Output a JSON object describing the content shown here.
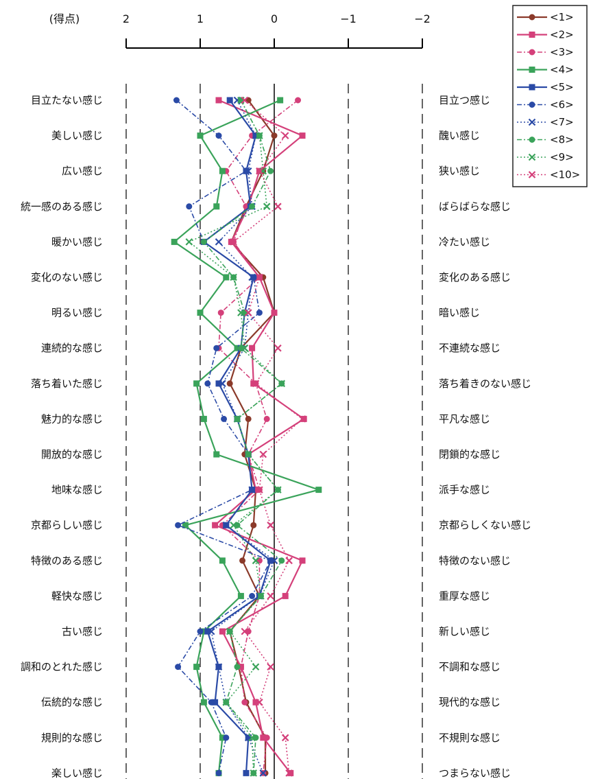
{
  "chart_data": {
    "type": "line",
    "orientation": "horizontal-profile",
    "score_label": "(得点)",
    "xticks": [
      2,
      1,
      0,
      -1,
      -2
    ],
    "xtick_labels": [
      "2",
      "1",
      "0",
      "−1",
      "−2"
    ],
    "xlim": [
      2,
      -2
    ],
    "left_labels": [
      "目立たない感じ",
      "美しい感じ",
      "広い感じ",
      "統一感のある感じ",
      "暖かい感じ",
      "変化のない感じ",
      "明るい感じ",
      "連続的な感じ",
      "落ち着いた感じ",
      "魅力的な感じ",
      "開放的な感じ",
      "地味な感じ",
      "京都らしい感じ",
      "特徴のある感じ",
      "軽快な感じ",
      "古い感じ",
      "調和のとれた感じ",
      "伝統的な感じ",
      "規則的な感じ",
      "楽しい感じ"
    ],
    "right_labels": [
      "目立つ感じ",
      "醜い感じ",
      "狭い感じ",
      "ばらばらな感じ",
      "冷たい感じ",
      "変化のある感じ",
      "暗い感じ",
      "不連続な感じ",
      "落ち着きのない感じ",
      "平凡な感じ",
      "閉鎖的な感じ",
      "派手な感じ",
      "京都らしくない感じ",
      "特徴のない感じ",
      "重厚な感じ",
      "新しい感じ",
      "不調和な感じ",
      "現代的な感じ",
      "不規則な感じ",
      "つまらない感じ"
    ],
    "legend_position": "top-right",
    "series": [
      {
        "name": "<1>",
        "color": "#8b3a2a",
        "dash": "solid",
        "marker": "circle",
        "values": [
          0.35,
          0.0,
          0.15,
          0.38,
          0.58,
          0.15,
          0.0,
          0.45,
          0.6,
          0.35,
          0.4,
          0.25,
          0.28,
          0.43,
          0.2,
          0.6,
          0.48,
          0.38,
          0.12,
          0.12
        ]
      },
      {
        "name": "<2>",
        "color": "#d4407a",
        "dash": "solid",
        "marker": "square",
        "values": [
          0.75,
          -0.38,
          0.2,
          0.35,
          0.58,
          0.2,
          0.0,
          0.3,
          0.28,
          -0.4,
          0.35,
          0.25,
          0.8,
          -0.38,
          -0.15,
          0.7,
          0.45,
          0.25,
          0.15,
          -0.22
        ]
      },
      {
        "name": "<3>",
        "color": "#d4407a",
        "dash": "dashdot",
        "marker": "circle",
        "values": [
          -0.32,
          0.3,
          0.65,
          0.38,
          0.55,
          0.2,
          0.72,
          0.75,
          0.25,
          0.1,
          0.35,
          0.2,
          0.7,
          0.2,
          0.2,
          0.35,
          0.45,
          0.4,
          0.1,
          0.15
        ]
      },
      {
        "name": "<4>",
        "color": "#3aa35a",
        "dash": "solid",
        "marker": "square",
        "values": [
          -0.08,
          1.0,
          0.7,
          0.78,
          1.35,
          0.65,
          1.0,
          0.5,
          1.05,
          0.95,
          0.78,
          -0.6,
          1.2,
          0.7,
          0.45,
          0.95,
          1.05,
          0.95,
          0.7,
          0.75
        ]
      },
      {
        "name": "<5>",
        "color": "#2a4aa6",
        "dash": "solid",
        "marker": "square",
        "values": [
          0.6,
          0.25,
          0.38,
          0.32,
          0.95,
          0.28,
          0.4,
          0.45,
          0.75,
          0.5,
          0.35,
          0.3,
          0.65,
          0.05,
          0.2,
          0.9,
          0.75,
          0.8,
          0.35,
          0.38
        ]
      },
      {
        "name": "<6>",
        "color": "#2a4aa6",
        "dash": "dashdot",
        "marker": "circle",
        "values": [
          1.32,
          0.75,
          0.38,
          1.15,
          0.95,
          0.28,
          0.2,
          0.78,
          0.9,
          0.68,
          0.35,
          0.3,
          1.3,
          0.05,
          0.3,
          1.0,
          1.3,
          0.85,
          0.65,
          0.75
        ]
      },
      {
        "name": "<7>",
        "color": "#2a4aa6",
        "dash": "dot",
        "marker": "x",
        "values": [
          0.5,
          0.25,
          0.35,
          0.3,
          0.75,
          0.3,
          0.35,
          0.4,
          0.7,
          0.5,
          0.35,
          0.3,
          0.65,
          0.0,
          0.2,
          0.85,
          0.75,
          0.65,
          0.35,
          0.15
        ]
      },
      {
        "name": "<8>",
        "color": "#3aa35a",
        "dash": "dashdot",
        "marker": "circle",
        "values": [
          0.45,
          0.2,
          0.05,
          0.3,
          0.95,
          0.55,
          0.4,
          0.45,
          -0.1,
          0.5,
          0.35,
          -0.05,
          0.5,
          -0.1,
          0.18,
          0.6,
          0.5,
          0.65,
          0.25,
          0.28
        ]
      },
      {
        "name": "<9>",
        "color": "#3aa35a",
        "dash": "dot",
        "marker": "x",
        "values": [
          0.45,
          0.2,
          0.15,
          0.1,
          1.15,
          0.55,
          0.45,
          0.4,
          -0.1,
          0.5,
          0.35,
          -0.05,
          0.55,
          0.25,
          0.18,
          0.6,
          0.25,
          0.65,
          0.3,
          0.28
        ]
      },
      {
        "name": "<10>",
        "color": "#d4407a",
        "dash": "dot",
        "marker": "x",
        "values": [
          0.4,
          -0.15,
          0.2,
          -0.05,
          0.55,
          0.2,
          0.35,
          -0.05,
          0.25,
          -0.38,
          0.15,
          0.2,
          0.05,
          -0.2,
          0.05,
          0.4,
          0.05,
          0.2,
          -0.15,
          -0.2
        ]
      }
    ]
  }
}
